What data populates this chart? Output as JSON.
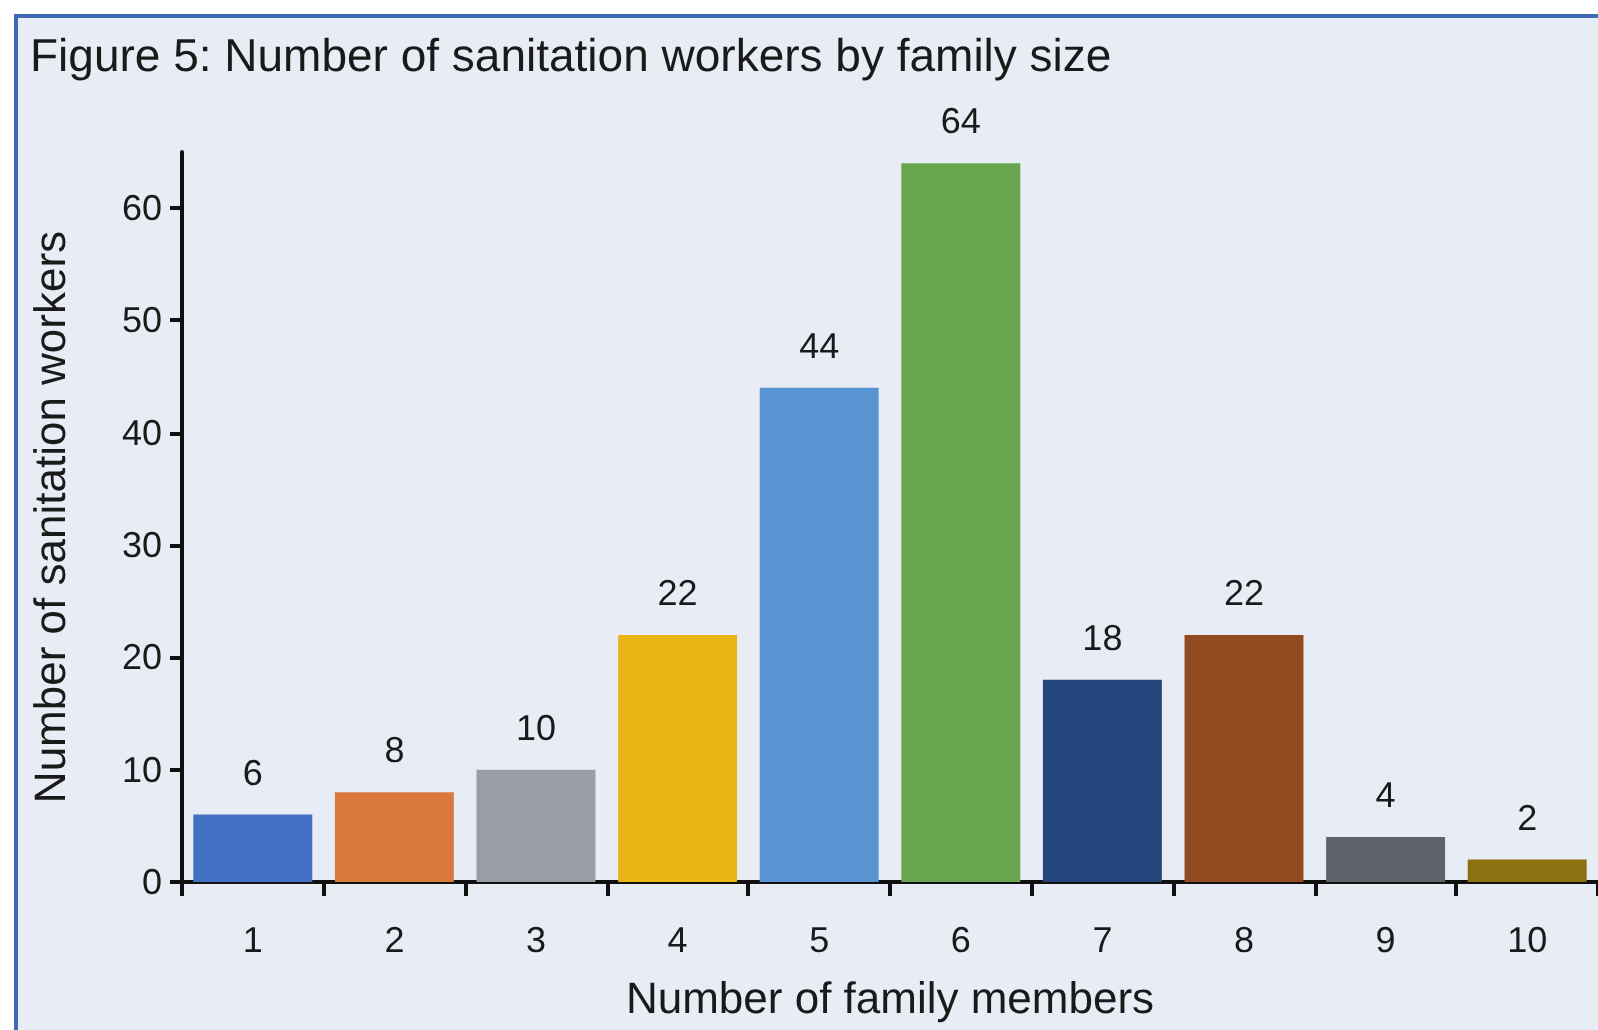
{
  "chart_data": {
    "type": "bar",
    "title": "Figure 5: Number of sanitation workers by family size",
    "xlabel": "Number of family members",
    "ylabel": "Number of sanitation workers",
    "categories": [
      "1",
      "2",
      "3",
      "4",
      "5",
      "6",
      "7",
      "8",
      "9",
      "10"
    ],
    "values": [
      6,
      8,
      10,
      22,
      44,
      64,
      18,
      22,
      4,
      2
    ],
    "colors": [
      "#4270c2",
      "#da793c",
      "#9a9da3",
      "#e9b414",
      "#5794d1",
      "#69a54e",
      "#25467c",
      "#924a1f",
      "#5f636b",
      "#8b7110"
    ],
    "ylim": [
      0,
      65
    ],
    "yticks": [
      0,
      10,
      20,
      30,
      40,
      50,
      60
    ],
    "data_labels": true
  }
}
